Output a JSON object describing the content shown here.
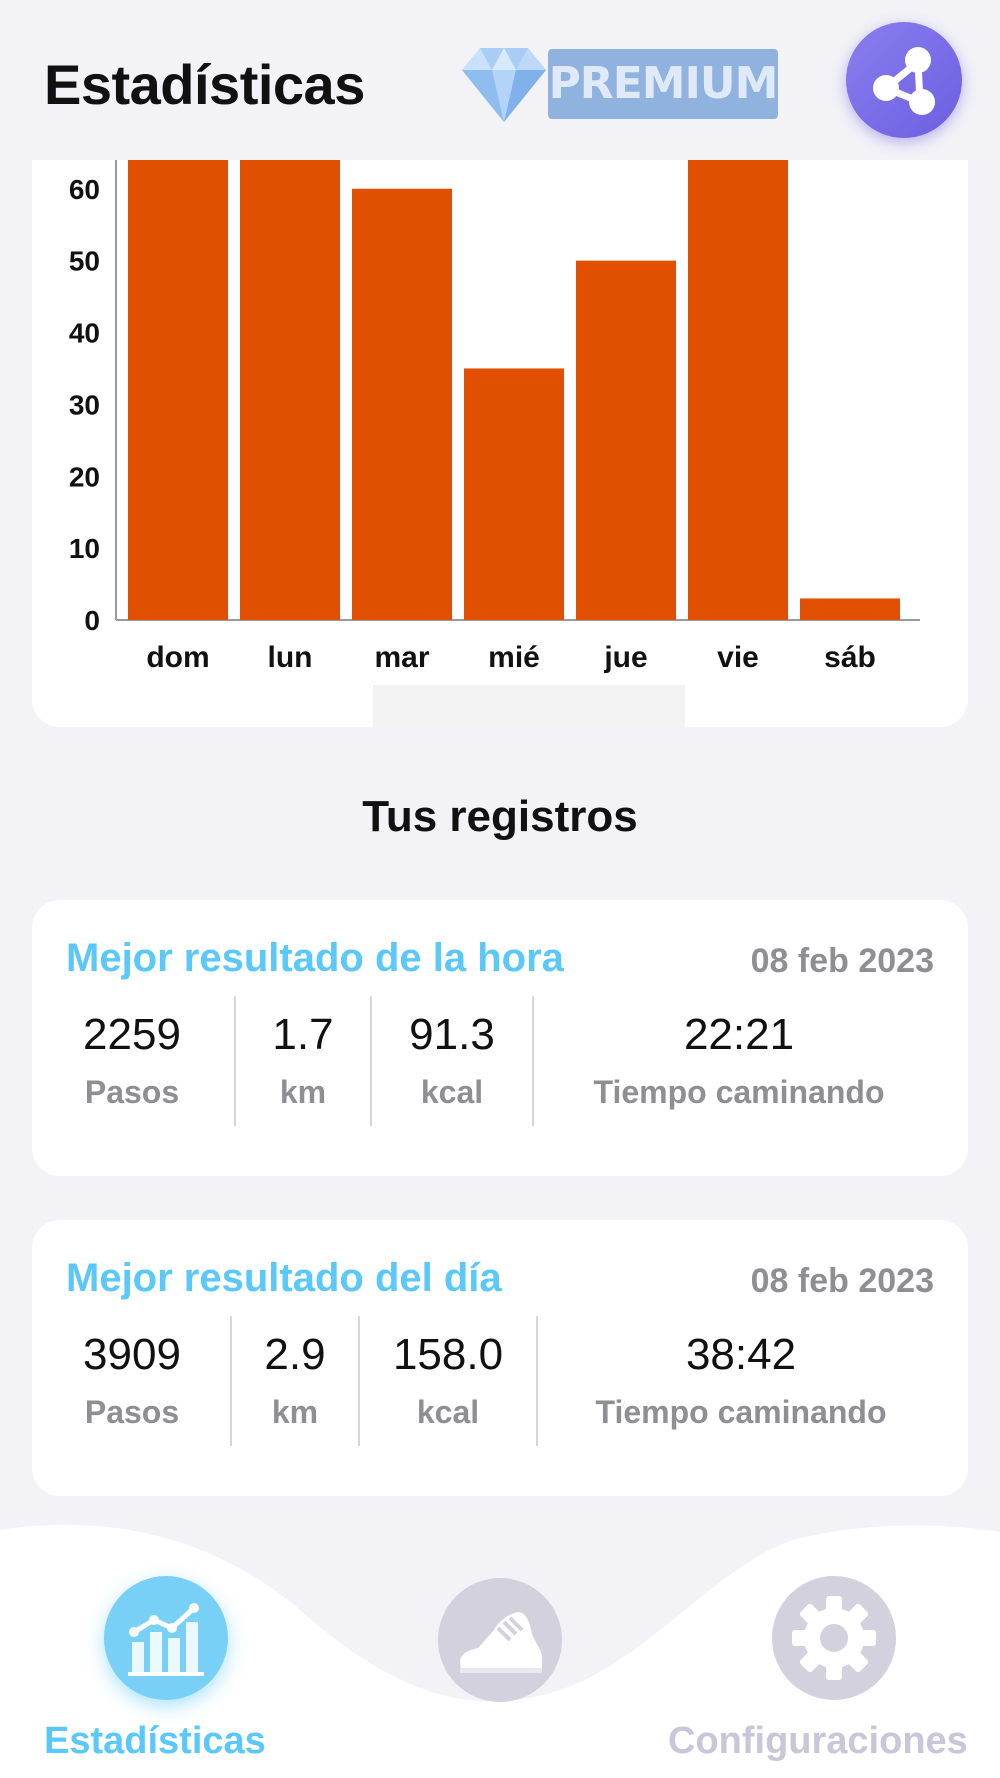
{
  "header": {
    "title": "Estadísticas",
    "premium_label": "PREMIUM",
    "icons": {
      "diamond": "diamond-icon",
      "share": "share-icon"
    }
  },
  "chart_data": {
    "type": "bar",
    "categories": [
      "dom",
      "lun",
      "mar",
      "mié",
      "jue",
      "vie",
      "sáb"
    ],
    "values": [
      64,
      64,
      60,
      35,
      50,
      64,
      3
    ],
    "yticks": [
      "0",
      "10",
      "20",
      "30",
      "40",
      "50",
      "60"
    ],
    "ylim": [
      0,
      64
    ],
    "bar_color": "#e05000",
    "grid": false,
    "note": "bars for dom, lun and vie extend beyond the visible top of the chart"
  },
  "records": {
    "section_title": "Tus registros",
    "cards": [
      {
        "title": "Mejor resultado de la hora",
        "date": "08 feb 2023",
        "steps": "2259",
        "steps_label": "Pasos",
        "distance": "1.7",
        "distance_label": "km",
        "calories": "91.3",
        "calories_label": "kcal",
        "time": "22:21",
        "time_label": "Tiempo caminando"
      },
      {
        "title": "Mejor resultado del día",
        "date": "08 feb 2023",
        "steps": "3909",
        "steps_label": "Pasos",
        "distance": "2.9",
        "distance_label": "km",
        "calories": "158.0",
        "calories_label": "kcal",
        "time": "38:42",
        "time_label": "Tiempo caminando"
      }
    ]
  },
  "bottom_nav": {
    "items": [
      {
        "label": "Estadísticas",
        "icon": "chart-icon",
        "active": true
      },
      {
        "label": "",
        "icon": "shoe-icon",
        "active": false
      },
      {
        "label": "Configuraciones",
        "icon": "gear-icon",
        "active": false
      }
    ]
  },
  "colors": {
    "accent": "#5ac8fa",
    "bar": "#e05000",
    "premium_bg": "#8fb2df",
    "share_bg": "#7a6ee8",
    "inactive_icon": "#d3d1de",
    "inactive_label": "#c8c6d8",
    "muted_text": "#8e8e93"
  }
}
